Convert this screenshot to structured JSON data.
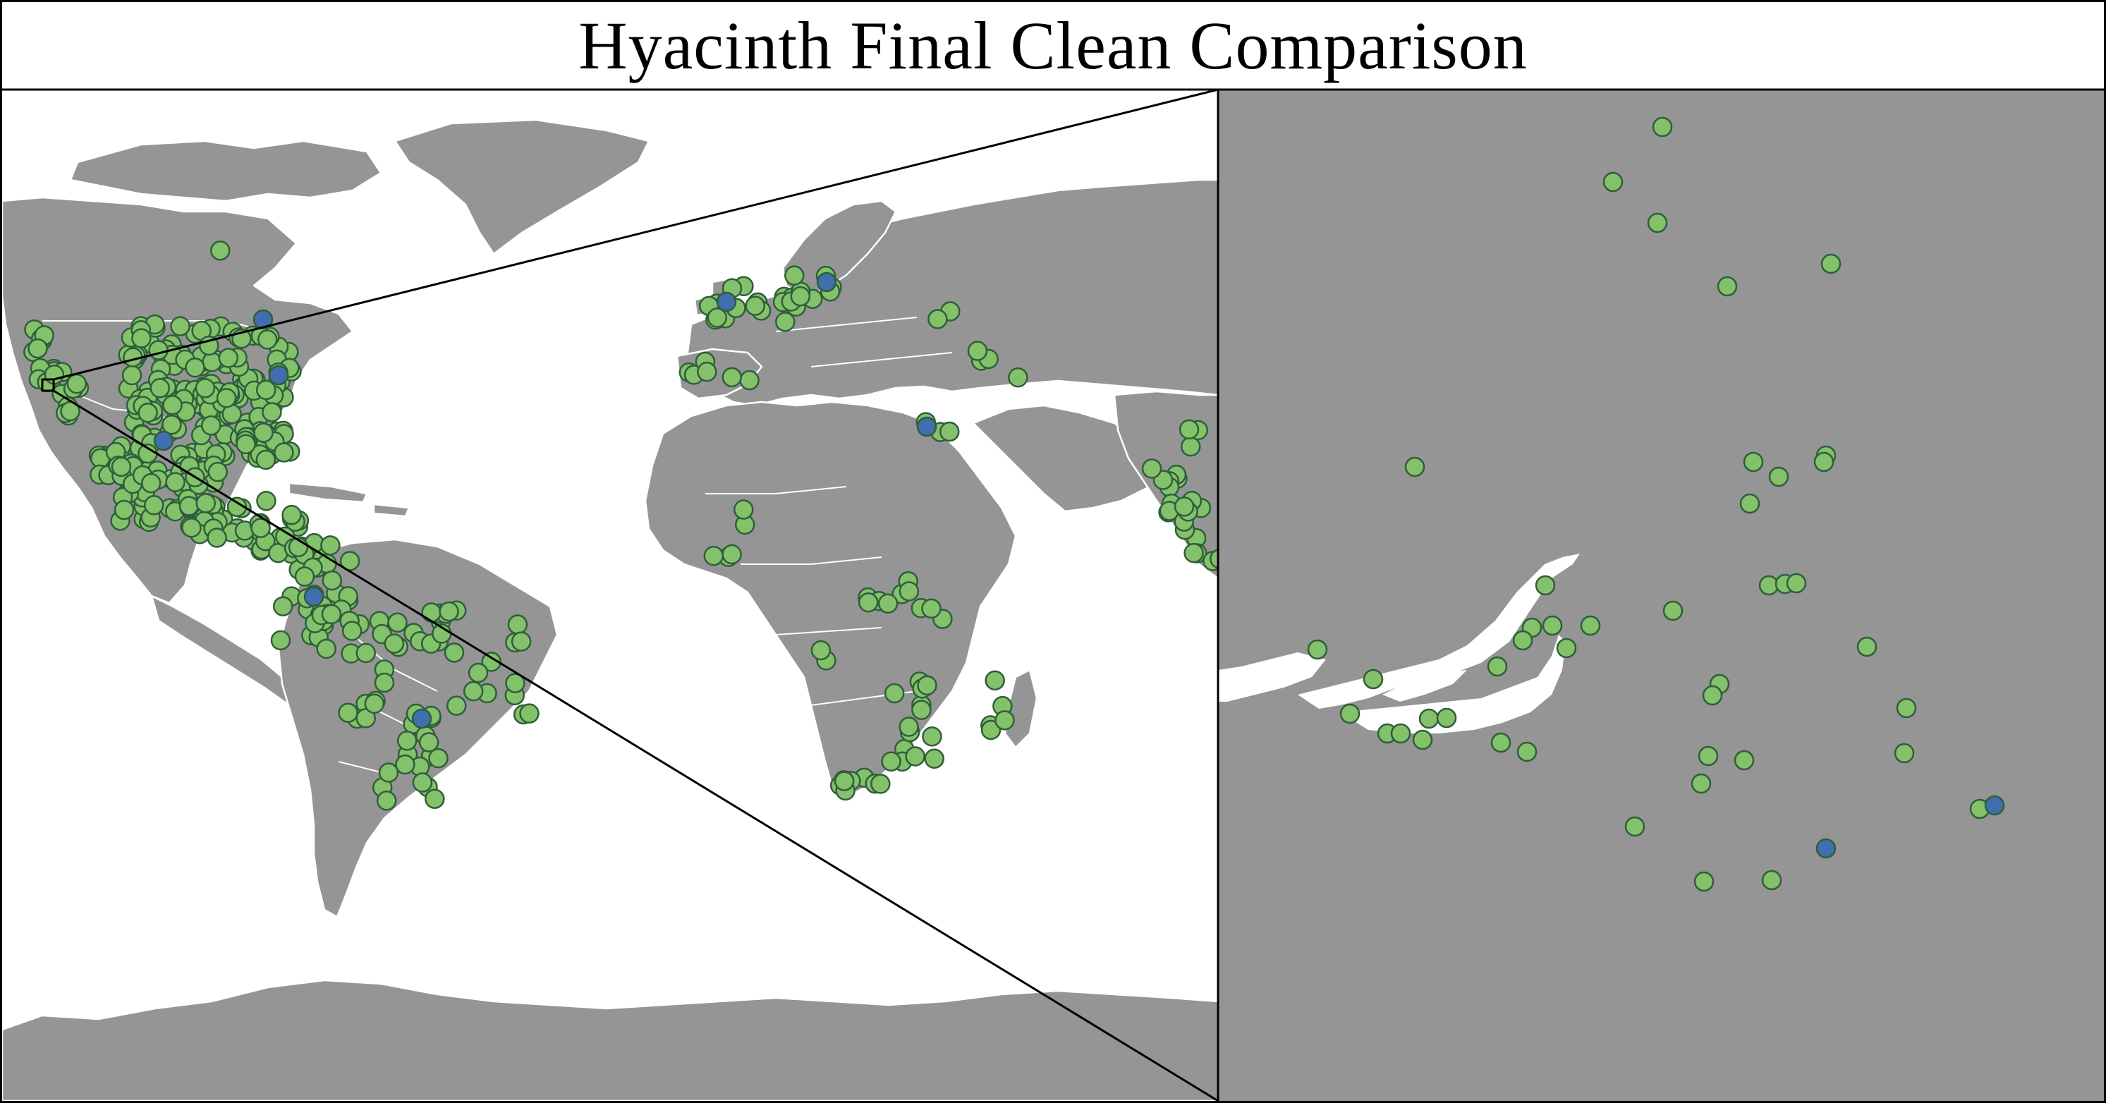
{
  "title": "Hyacinth Final Clean Comparison",
  "colors": {
    "land": "#959595",
    "water": "#ffffff",
    "border": "#ffffff",
    "clean_point": "#84c16b",
    "removed_point": "#3f6fae",
    "point_stroke": "#2f5e3a",
    "frame": "#000000"
  },
  "legend": null,
  "inset": {
    "description_visible": false,
    "world_marker": "small square on California coast"
  }
}
